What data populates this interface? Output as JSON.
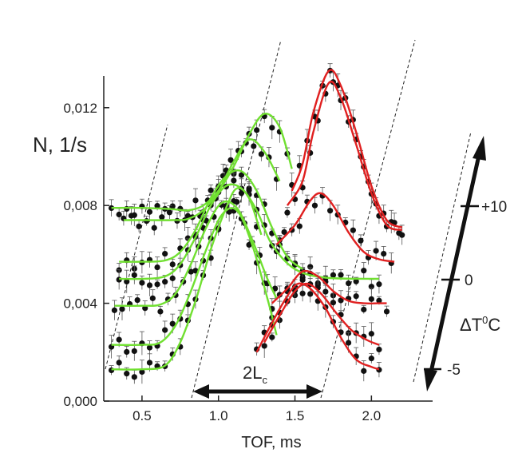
{
  "chart_data": {
    "type": "scatter",
    "title": "",
    "xlabel": "TOF, ms",
    "ylabel": "N, 1/s",
    "xlim": [
      0.25,
      2.4
    ],
    "ylim": [
      0,
      0.0133
    ],
    "x_ticks": [
      0.5,
      1.0,
      1.5,
      2.0
    ],
    "x_tick_labels": [
      "0.5",
      "1.0",
      "1.5",
      "2.0"
    ],
    "y_ticks": [
      0,
      0.004,
      0.008,
      0.012
    ],
    "y_tick_labels": [
      "0,000",
      "0,004",
      "0,008",
      "0,012"
    ],
    "grid": false,
    "legend": "none",
    "annotations": {
      "length_label_main": "2L",
      "length_label_sub": "c",
      "temperature_axis_main": "ΔT",
      "temperature_axis_sup": "0",
      "temperature_axis_unit": "C",
      "temperature_ticks": [
        "+10",
        "0",
        "-5"
      ]
    },
    "series": [
      {
        "color": "#70e030",
        "x": [
          0.3,
          0.5,
          0.7,
          0.8,
          0.9,
          1.0,
          1.1,
          1.2,
          1.3,
          1.4,
          1.48
        ],
        "y": [
          0.0079,
          0.0079,
          0.00785,
          0.0078,
          0.008,
          0.0086,
          0.0096,
          0.0109,
          0.01175,
          0.0112,
          0.0095
        ]
      },
      {
        "color": "#70e030",
        "x": [
          0.38,
          0.5,
          0.7,
          0.8,
          0.9,
          1.0,
          1.1,
          1.2,
          1.3,
          1.4
        ],
        "y": [
          0.0074,
          0.0074,
          0.0074,
          0.00745,
          0.0078,
          0.0086,
          0.0098,
          0.0107,
          0.0102,
          0.009
        ]
      },
      {
        "color": "#70e030",
        "x": [
          0.35,
          0.5,
          0.65,
          0.75,
          0.85,
          0.95,
          1.05,
          1.15,
          1.25,
          1.35,
          1.45,
          1.55
        ],
        "y": [
          0.0057,
          0.0057,
          0.00575,
          0.0061,
          0.007,
          0.0083,
          0.0092,
          0.0094,
          0.0086,
          0.0071,
          0.0059,
          0.0054
        ]
      },
      {
        "color": "#70e030",
        "x": [
          0.35,
          0.5,
          0.65,
          0.75,
          0.85,
          0.95,
          1.05,
          1.15,
          1.25,
          1.35,
          1.5,
          1.7,
          2.05
        ],
        "y": [
          0.005,
          0.005,
          0.0051,
          0.0056,
          0.0067,
          0.008,
          0.0088,
          0.0087,
          0.0078,
          0.0064,
          0.0054,
          0.00505,
          0.005
        ]
      },
      {
        "color": "#70e030",
        "x": [
          0.32,
          0.5,
          0.62,
          0.72,
          0.82,
          0.92,
          1.02,
          1.12,
          1.22,
          1.32,
          1.38
        ],
        "y": [
          0.0039,
          0.0039,
          0.00395,
          0.0044,
          0.0056,
          0.0071,
          0.0081,
          0.0079,
          0.0066,
          0.005,
          0.0042
        ]
      },
      {
        "color": "#70e030",
        "x": [
          0.3,
          0.5,
          0.62,
          0.72,
          0.82,
          0.92,
          1.02,
          1.12,
          1.22,
          1.32,
          1.38
        ],
        "y": [
          0.0023,
          0.0023,
          0.0024,
          0.0031,
          0.0045,
          0.0062,
          0.0076,
          0.0078,
          0.0064,
          0.0042,
          0.0027
        ]
      },
      {
        "color": "#70e030",
        "x": [
          0.3,
          0.5,
          0.65,
          0.75,
          0.85,
          0.95,
          1.05,
          1.12,
          1.2,
          1.28
        ],
        "y": [
          0.0013,
          0.0013,
          0.00145,
          0.0024,
          0.0041,
          0.0062,
          0.0079,
          0.0087,
          0.0083,
          0.0068
        ]
      },
      {
        "color": "#e02020",
        "x": [
          1.48,
          1.55,
          1.62,
          1.72,
          1.8,
          1.9,
          2.0,
          2.1,
          2.2
        ],
        "y": [
          0.0086,
          0.0097,
          0.0118,
          0.0135,
          0.0129,
          0.011,
          0.0088,
          0.0074,
          0.0071
        ]
      },
      {
        "color": "#e02020",
        "x": [
          1.45,
          1.55,
          1.62,
          1.72,
          1.8,
          1.9,
          2.0,
          2.1,
          2.2
        ],
        "y": [
          0.008,
          0.009,
          0.011,
          0.013,
          0.0124,
          0.0105,
          0.0085,
          0.0072,
          0.007
        ]
      },
      {
        "color": "#e02020",
        "x": [
          1.38,
          1.5,
          1.6,
          1.67,
          1.75,
          1.85,
          1.95,
          2.05,
          2.15
        ],
        "y": [
          0.0064,
          0.0072,
          0.0082,
          0.0085,
          0.008,
          0.0069,
          0.0061,
          0.0058,
          0.0057
        ]
      },
      {
        "color": "#e02020",
        "x": [
          1.35,
          1.45,
          1.55,
          1.65,
          1.75,
          1.85,
          1.95,
          2.05,
          2.1
        ],
        "y": [
          0.004,
          0.0046,
          0.0053,
          0.0051,
          0.0045,
          0.0041,
          0.004,
          0.004,
          0.004
        ]
      },
      {
        "color": "#e02020",
        "x": [
          1.3,
          1.4,
          1.5,
          1.58,
          1.67,
          1.77,
          1.87,
          1.97,
          2.05
        ],
        "y": [
          0.0024,
          0.0035,
          0.0045,
          0.0048,
          0.0044,
          0.0036,
          0.0029,
          0.0025,
          0.0023
        ]
      },
      {
        "color": "#e02020",
        "x": [
          1.25,
          1.35,
          1.45,
          1.52,
          1.6,
          1.7,
          1.8,
          1.9,
          2.0,
          2.05
        ],
        "y": [
          0.002,
          0.0032,
          0.0043,
          0.0048,
          0.0046,
          0.0038,
          0.0026,
          0.0017,
          0.0014,
          0.0013
        ]
      }
    ]
  }
}
